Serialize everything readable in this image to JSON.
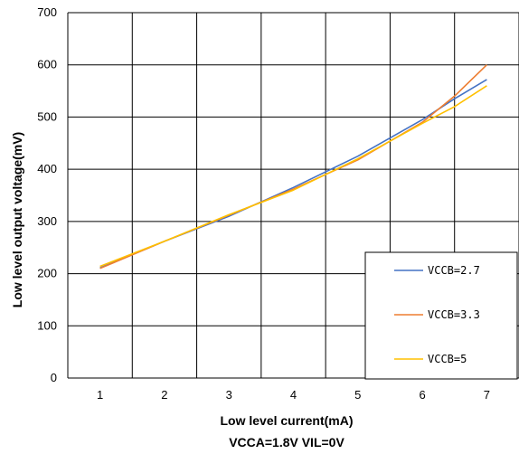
{
  "chart_data": {
    "type": "line",
    "title": "",
    "xlabel": "Low level current(mA)",
    "ylabel": "Low level output voltage(mV)",
    "subtitle": "VCCA=1.8V VIL=0V",
    "x": [
      1,
      2,
      3,
      4,
      5,
      6,
      6.5,
      7
    ],
    "x_ticks": [
      1,
      2,
      3,
      4,
      5,
      6,
      7
    ],
    "xlim": [
      0.5,
      7.5
    ],
    "y_ticks": [
      0,
      100,
      200,
      300,
      400,
      500,
      600,
      700
    ],
    "ylim": [
      0,
      700
    ],
    "grid": true,
    "legend_position": "bottom-right",
    "series": [
      {
        "name": "VCCB=2.7",
        "color": "#4472C4",
        "values": [
          211,
          262,
          310,
          365,
          425,
          495,
          535,
          572
        ]
      },
      {
        "name": "VCCB=3.3",
        "color": "#ED7D31",
        "values": [
          210,
          262,
          312,
          362,
          418,
          490,
          540,
          600
        ]
      },
      {
        "name": "VCCB=5",
        "color": "#FFC000",
        "values": [
          214,
          262,
          313,
          360,
          420,
          488,
          520,
          560
        ]
      }
    ]
  }
}
